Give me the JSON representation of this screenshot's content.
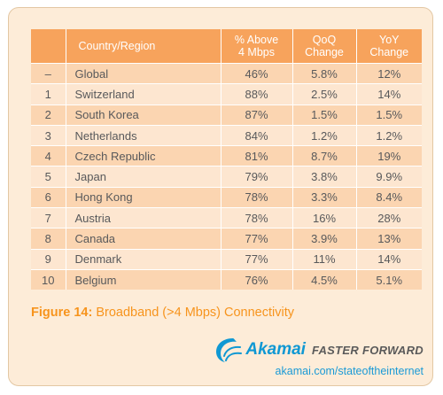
{
  "chart_data": {
    "type": "table",
    "columns": [
      "",
      "Country/Region",
      "% Above 4 Mbps",
      "QoQ Change",
      "YoY Change"
    ],
    "rows": [
      [
        "–",
        "Global",
        "46%",
        "5.8%",
        "12%"
      ],
      [
        "1",
        "Switzerland",
        "88%",
        "2.5%",
        "14%"
      ],
      [
        "2",
        "South Korea",
        "87%",
        "1.5%",
        "1.5%"
      ],
      [
        "3",
        "Netherlands",
        "84%",
        "1.2%",
        "1.2%"
      ],
      [
        "4",
        "Czech Republic",
        "81%",
        "8.7%",
        "19%"
      ],
      [
        "5",
        "Japan",
        "79%",
        "3.8%",
        "9.9%"
      ],
      [
        "6",
        "Hong Kong",
        "78%",
        "3.3%",
        "8.4%"
      ],
      [
        "7",
        "Austria",
        "78%",
        "16%",
        "28%"
      ],
      [
        "8",
        "Canada",
        "77%",
        "3.9%",
        "13%"
      ],
      [
        "9",
        "Denmark",
        "77%",
        "11%",
        "14%"
      ],
      [
        "10",
        "Belgium",
        "76%",
        "4.5%",
        "5.1%"
      ]
    ],
    "headers": {
      "country": "Country/Region",
      "pct_line1": "% Above",
      "pct_line2": "4 Mbps",
      "qoq_line1": "QoQ",
      "qoq_line2": "Change",
      "yoy_line1": "YoY",
      "yoy_line2": "Change"
    },
    "caption": {
      "figure_label": "Figure 14:",
      "text": "Broadband (>4 Mbps) Connectivity"
    }
  },
  "branding": {
    "logo_word": "Akamai",
    "tagline": "FASTER FORWARD",
    "url": "akamai.com/stateoftheinternet"
  },
  "colors": {
    "header_bg": "#f7a35c",
    "row_dark": "#fbd5b1",
    "row_light": "#fde6d0",
    "panel_bg": "#fdecd8",
    "caption": "#f7941d",
    "brand_blue": "#0f98d3"
  }
}
